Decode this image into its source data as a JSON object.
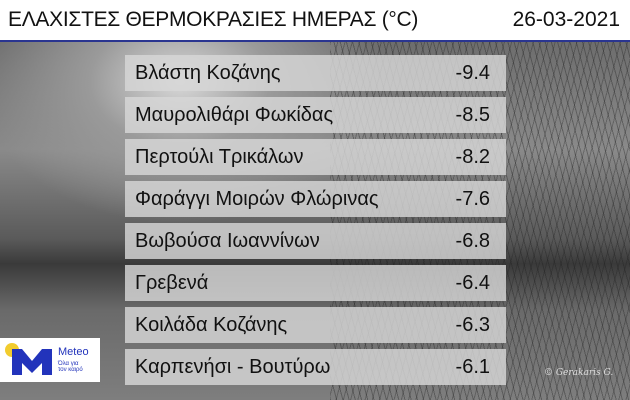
{
  "header": {
    "title": "ΕΛΑΧΙΣΤΕΣ ΘΕΡΜΟΚΡΑΣΙΕΣ ΗΜΕΡΑΣ (°C)",
    "date": "26-03-2021"
  },
  "rows": [
    {
      "station": "Βλάστη Κοζάνης",
      "temp": "-9.4"
    },
    {
      "station": "Μαυρολιθάρι Φωκίδας",
      "temp": "-8.5"
    },
    {
      "station": "Περτούλι Τρικάλων",
      "temp": "-8.2"
    },
    {
      "station": "Φαράγγι Μοιρών Φλώρινας",
      "temp": "-7.6"
    },
    {
      "station": "Βωβούσα Ιωαννίνων",
      "temp": "-6.8"
    },
    {
      "station": "Γρεβενά",
      "temp": "-6.4"
    },
    {
      "station": "Κοιλάδα Κοζάνης",
      "temp": "-6.3"
    },
    {
      "station": "Καρπενήσι - Βουτύρω",
      "temp": "-6.1"
    }
  ],
  "logo": {
    "name": "Meteo",
    "slogan_line1": "Όλα για",
    "slogan_line2": "τον καιρό",
    "brand_color": "#2233bb",
    "sun_color": "#f2cc2e"
  },
  "watermark": "© Gerakaris G."
}
